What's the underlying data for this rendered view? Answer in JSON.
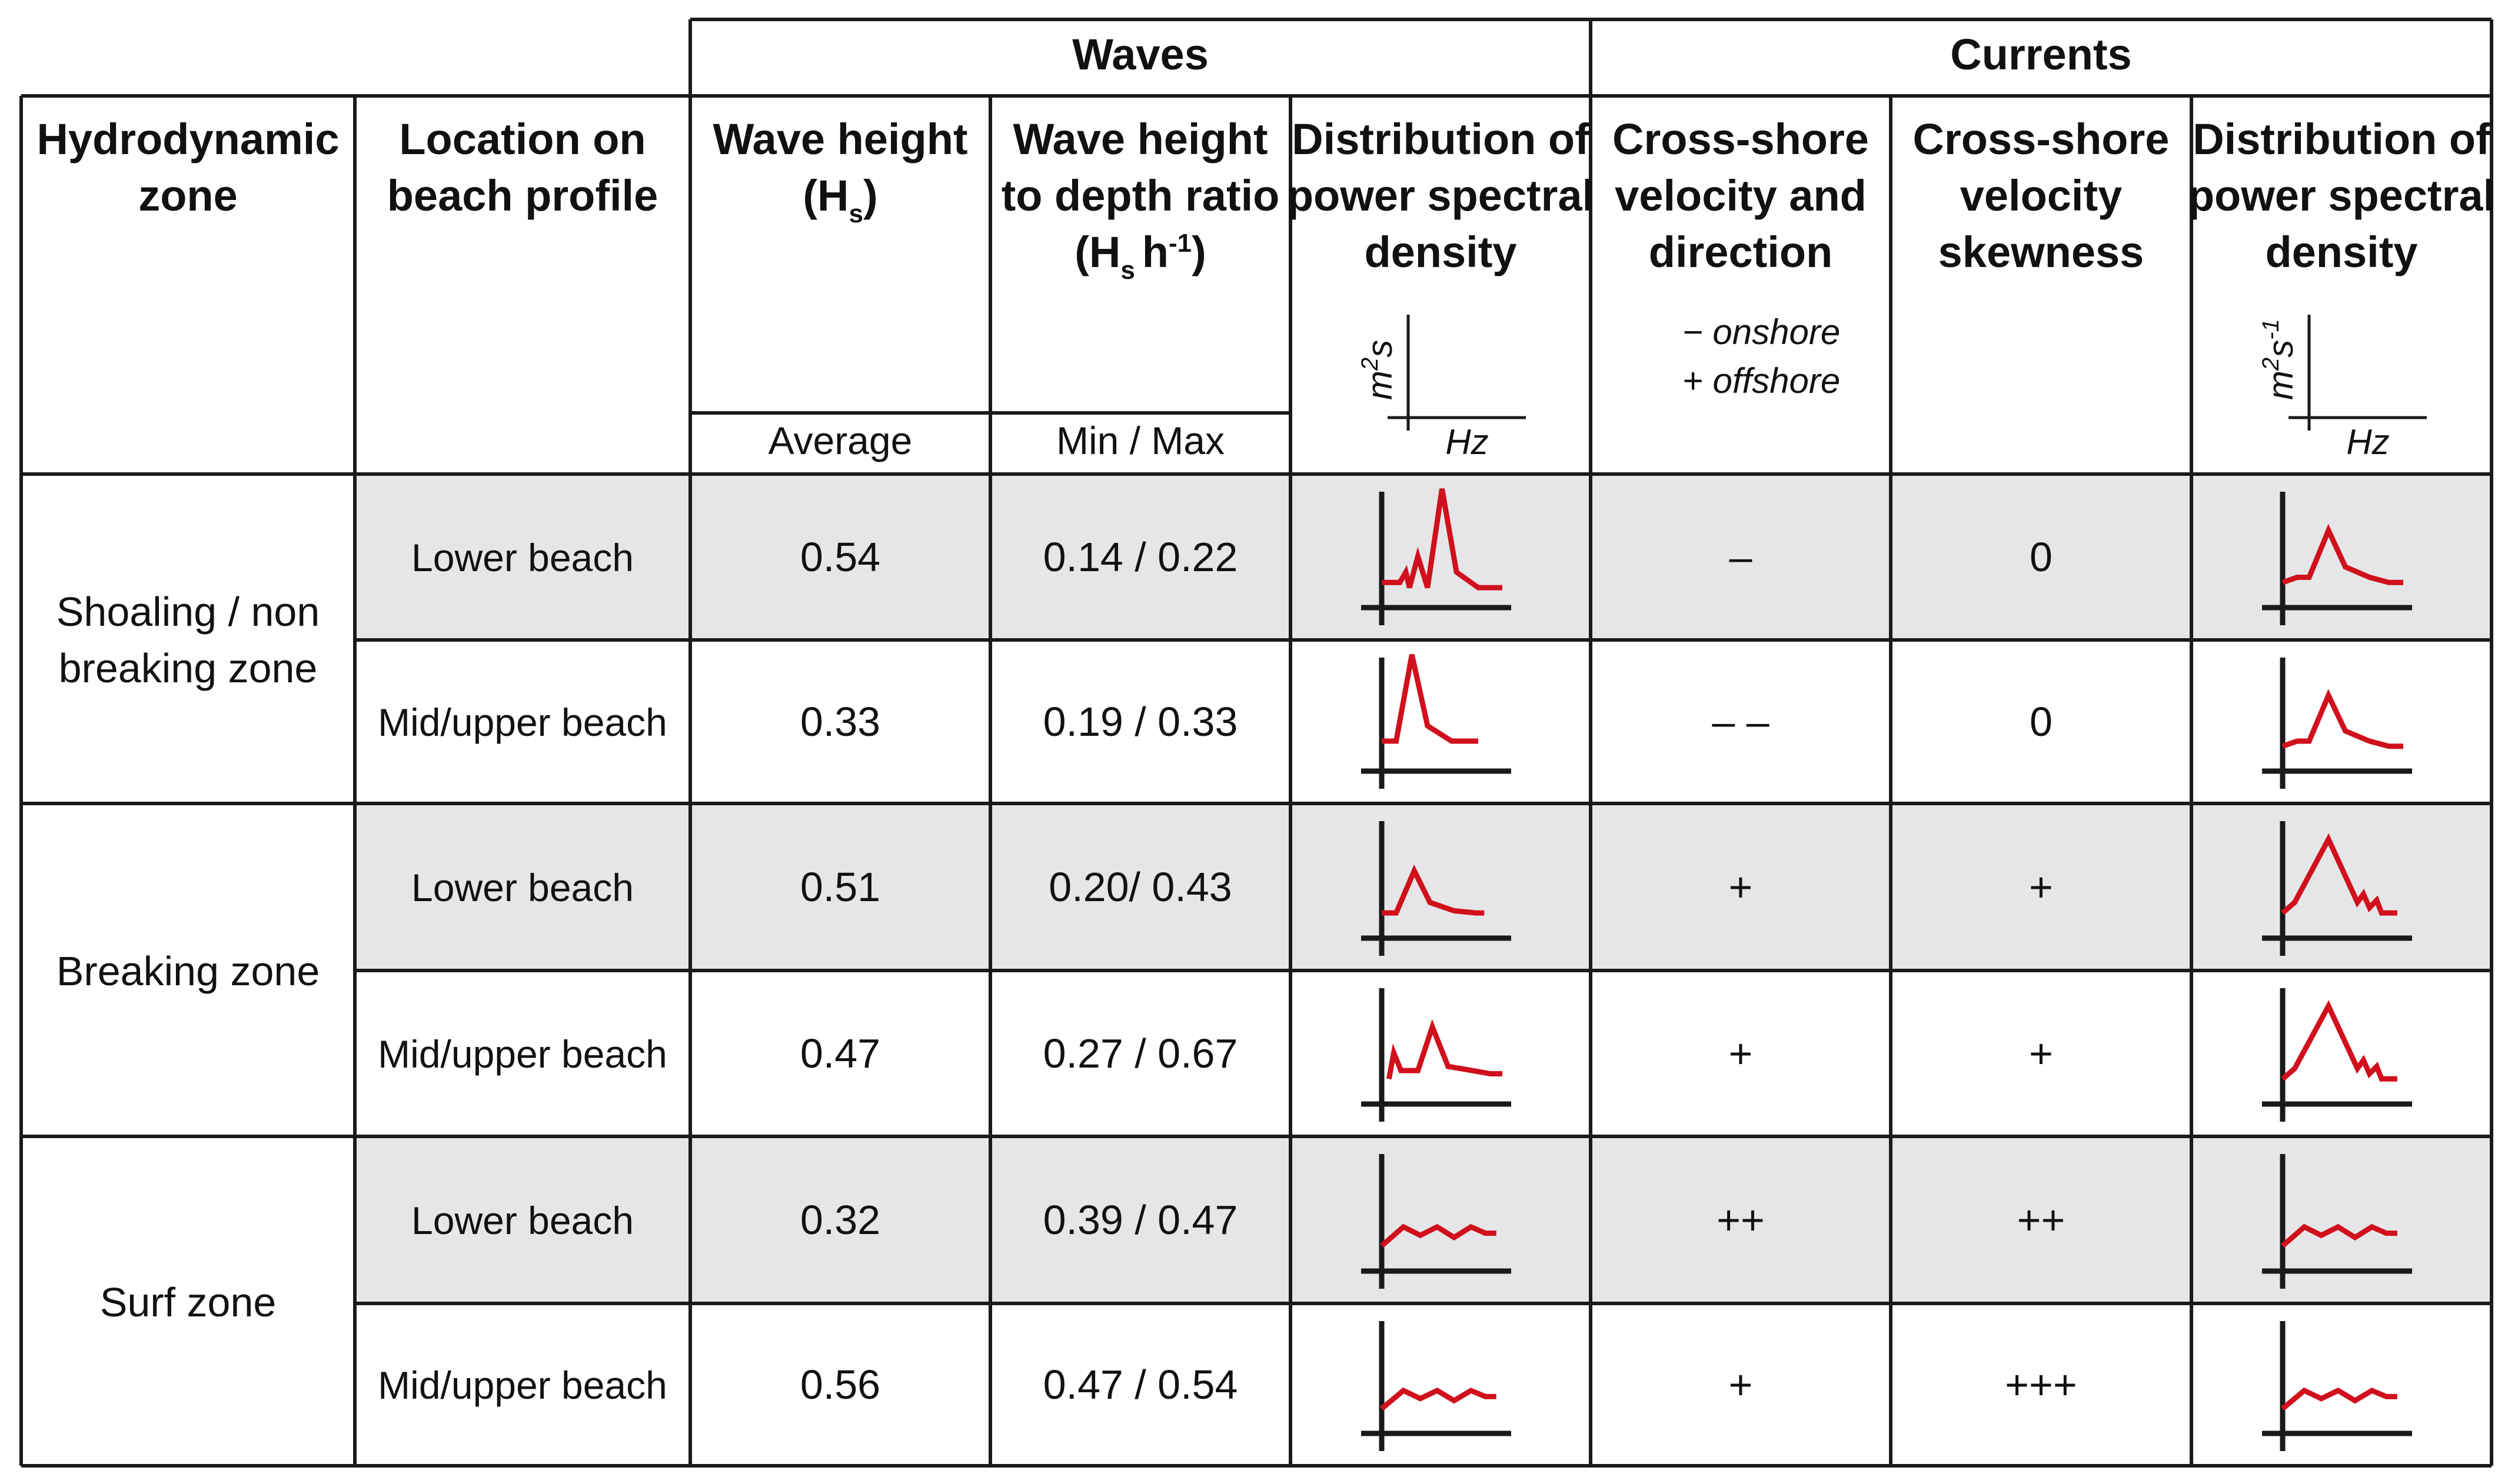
{
  "groups": {
    "waves": "Waves",
    "currents": "Currents"
  },
  "headers": {
    "zone": [
      "Hydrodynamic",
      "zone"
    ],
    "location": [
      "Location on",
      "beach profile"
    ],
    "wave_height": [
      "Wave height"
    ],
    "wave_height_symbol": "H",
    "wave_height_sub": "s",
    "ratio": [
      "Wave height",
      "to depth ratio"
    ],
    "ratio_symbol": "H",
    "ratio_sub": "s",
    "ratio_h": "h",
    "ratio_sup": "-1",
    "psd": [
      "Distribution of",
      "power spectral",
      "density"
    ],
    "velocity": [
      "Cross-shore",
      "velocity and",
      "direction"
    ],
    "velocity_legend": [
      "− onshore",
      "+ offshore"
    ],
    "skewness": [
      "Cross-shore",
      "velocity",
      "skewness"
    ],
    "psd2": [
      "Distribution of",
      "power spectral",
      "density"
    ],
    "average": "Average",
    "minmax": "Min / Max",
    "axis_waves": {
      "y": "m",
      "y_sup": "2",
      "y_rest": "s",
      "x": "Hz"
    },
    "axis_currents": {
      "y": "m",
      "y_sup": "2",
      "y_rest": "s",
      "y_sup2": "-1",
      "x": "Hz"
    }
  },
  "zones": [
    {
      "name": [
        "Shoaling / non",
        "breaking zone"
      ]
    },
    {
      "name": [
        "Breaking zone"
      ]
    },
    {
      "name": [
        "Surf zone"
      ]
    }
  ],
  "rows": [
    {
      "location": "Lower beach",
      "height": "0.54",
      "ratio": "0.14 / 0.22",
      "velocity": "–",
      "skewness": "0",
      "shaded": true,
      "wave_psd": [
        [
          0,
          0.1
        ],
        [
          0.15,
          0.1
        ],
        [
          0.2,
          0.2
        ],
        [
          0.23,
          0.05
        ],
        [
          0.3,
          0.35
        ],
        [
          0.38,
          0.05
        ],
        [
          0.5,
          1
        ],
        [
          0.62,
          0.2
        ],
        [
          0.8,
          0.05
        ],
        [
          1,
          0.05
        ]
      ],
      "current_psd": [
        [
          0,
          0.1
        ],
        [
          0.12,
          0.15
        ],
        [
          0.22,
          0.15
        ],
        [
          0.38,
          0.6
        ],
        [
          0.52,
          0.25
        ],
        [
          0.72,
          0.15
        ],
        [
          0.88,
          0.1
        ],
        [
          1,
          0.1
        ]
      ]
    },
    {
      "location": "Mid/upper beach",
      "height": "0.33",
      "ratio": "0.19 / 0.33",
      "velocity": "– –",
      "skewness": "0",
      "shaded": false,
      "wave_psd": [
        [
          0,
          0.15
        ],
        [
          0.12,
          0.15
        ],
        [
          0.25,
          1
        ],
        [
          0.38,
          0.3
        ],
        [
          0.58,
          0.15
        ],
        [
          0.72,
          0.15
        ],
        [
          0.8,
          0.15
        ]
      ],
      "current_psd": [
        [
          0,
          0.1
        ],
        [
          0.12,
          0.15
        ],
        [
          0.22,
          0.15
        ],
        [
          0.38,
          0.6
        ],
        [
          0.52,
          0.25
        ],
        [
          0.72,
          0.15
        ],
        [
          0.88,
          0.1
        ],
        [
          1,
          0.1
        ]
      ]
    },
    {
      "location": "Lower beach",
      "height": "0.51",
      "ratio": "0.20/ 0.43",
      "velocity": "+",
      "skewness": "+",
      "shaded": true,
      "wave_psd": [
        [
          0,
          0.1
        ],
        [
          0.12,
          0.1
        ],
        [
          0.27,
          0.5
        ],
        [
          0.4,
          0.2
        ],
        [
          0.6,
          0.12
        ],
        [
          0.78,
          0.1
        ],
        [
          0.85,
          0.1
        ]
      ],
      "current_psd": [
        [
          0,
          0.1
        ],
        [
          0.1,
          0.2
        ],
        [
          0.38,
          0.8
        ],
        [
          0.62,
          0.2
        ],
        [
          0.67,
          0.28
        ],
        [
          0.72,
          0.15
        ],
        [
          0.78,
          0.22
        ],
        [
          0.82,
          0.1
        ],
        [
          0.95,
          0.1
        ]
      ]
    },
    {
      "location": "Mid/upper beach",
      "height": "0.47",
      "ratio": "0.27 / 0.67",
      "velocity": "+",
      "skewness": "+",
      "shaded": false,
      "wave_psd": [
        [
          0.06,
          0.1
        ],
        [
          0.1,
          0.35
        ],
        [
          0.16,
          0.18
        ],
        [
          0.3,
          0.18
        ],
        [
          0.42,
          0.6
        ],
        [
          0.55,
          0.22
        ],
        [
          0.75,
          0.18
        ],
        [
          0.9,
          0.15
        ],
        [
          1,
          0.15
        ]
      ],
      "current_psd": [
        [
          0,
          0.1
        ],
        [
          0.1,
          0.2
        ],
        [
          0.38,
          0.8
        ],
        [
          0.62,
          0.2
        ],
        [
          0.67,
          0.28
        ],
        [
          0.72,
          0.15
        ],
        [
          0.78,
          0.22
        ],
        [
          0.82,
          0.1
        ],
        [
          0.95,
          0.1
        ]
      ]
    },
    {
      "location": "Lower beach",
      "height": "0.32",
      "ratio": "0.39 / 0.47",
      "velocity": "++",
      "skewness": "++",
      "shaded": true,
      "wave_psd": [
        [
          0,
          0.1
        ],
        [
          0.18,
          0.28
        ],
        [
          0.32,
          0.2
        ],
        [
          0.46,
          0.28
        ],
        [
          0.6,
          0.18
        ],
        [
          0.74,
          0.28
        ],
        [
          0.86,
          0.22
        ],
        [
          0.95,
          0.22
        ]
      ],
      "current_psd": [
        [
          0,
          0.1
        ],
        [
          0.18,
          0.28
        ],
        [
          0.32,
          0.2
        ],
        [
          0.46,
          0.28
        ],
        [
          0.6,
          0.18
        ],
        [
          0.74,
          0.28
        ],
        [
          0.86,
          0.22
        ],
        [
          0.95,
          0.22
        ]
      ]
    },
    {
      "location": "Mid/upper beach",
      "height": "0.56",
      "ratio": "0.47 / 0.54",
      "velocity": "+",
      "skewness": "+++",
      "shaded": false,
      "wave_psd": [
        [
          0,
          0.1
        ],
        [
          0.18,
          0.28
        ],
        [
          0.32,
          0.2
        ],
        [
          0.46,
          0.28
        ],
        [
          0.6,
          0.18
        ],
        [
          0.74,
          0.28
        ],
        [
          0.86,
          0.22
        ],
        [
          0.95,
          0.22
        ]
      ],
      "current_psd": [
        [
          0,
          0.1
        ],
        [
          0.18,
          0.28
        ],
        [
          0.32,
          0.2
        ],
        [
          0.46,
          0.28
        ],
        [
          0.6,
          0.18
        ],
        [
          0.74,
          0.28
        ],
        [
          0.86,
          0.22
        ],
        [
          0.95,
          0.22
        ]
      ]
    }
  ]
}
